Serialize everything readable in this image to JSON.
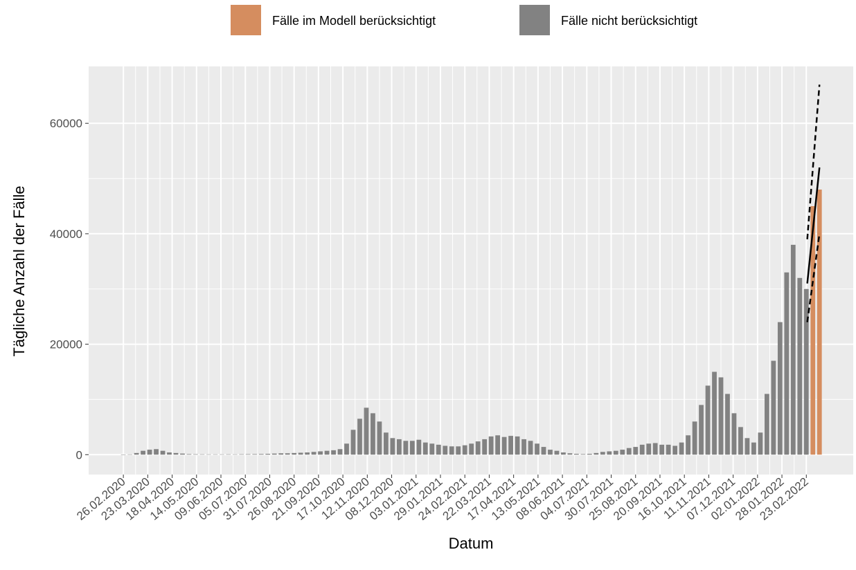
{
  "chart_data": {
    "type": "bar",
    "y_label": "Tägliche Anzahl der Fälle",
    "x_label": "Datum",
    "x": [
      "26.02.2020",
      "04.03.2020",
      "11.03.2020",
      "18.03.2020",
      "25.03.2020",
      "01.04.2020",
      "08.04.2020",
      "15.04.2020",
      "22.04.2020",
      "29.04.2020",
      "06.05.2020",
      "13.05.2020",
      "20.05.2020",
      "27.05.2020",
      "03.06.2020",
      "10.06.2020",
      "17.06.2020",
      "24.06.2020",
      "01.07.2020",
      "08.07.2020",
      "15.07.2020",
      "22.07.2020",
      "29.07.2020",
      "05.08.2020",
      "12.08.2020",
      "19.08.2020",
      "26.08.2020",
      "02.09.2020",
      "09.09.2020",
      "16.09.2020",
      "23.09.2020",
      "30.09.2020",
      "07.10.2020",
      "14.10.2020",
      "21.10.2020",
      "28.10.2020",
      "04.11.2020",
      "11.11.2020",
      "18.11.2020",
      "25.11.2020",
      "02.12.2020",
      "09.12.2020",
      "16.12.2020",
      "23.12.2020",
      "30.12.2020",
      "06.01.2021",
      "13.01.2021",
      "20.01.2021",
      "27.01.2021",
      "03.02.2021",
      "10.02.2021",
      "17.02.2021",
      "24.02.2021",
      "03.03.2021",
      "10.03.2021",
      "17.03.2021",
      "24.03.2021",
      "31.03.2021",
      "07.04.2021",
      "14.04.2021",
      "21.04.2021",
      "28.04.2021",
      "05.05.2021",
      "12.05.2021",
      "19.05.2021",
      "26.05.2021",
      "02.06.2021",
      "09.06.2021",
      "16.06.2021",
      "23.06.2021",
      "30.06.2021",
      "07.07.2021",
      "14.07.2021",
      "21.07.2021",
      "28.07.2021",
      "04.08.2021",
      "11.08.2021",
      "18.08.2021",
      "25.08.2021",
      "01.09.2021",
      "08.09.2021",
      "15.09.2021",
      "22.09.2021",
      "29.09.2021",
      "06.10.2021",
      "13.10.2021",
      "20.10.2021",
      "27.10.2021",
      "03.11.2021",
      "10.11.2021",
      "17.11.2021",
      "24.11.2021",
      "01.12.2021",
      "08.12.2021",
      "15.12.2021",
      "22.12.2021",
      "29.12.2021",
      "05.01.2022",
      "12.01.2022",
      "19.01.2022",
      "26.01.2022",
      "02.02.2022",
      "09.02.2022",
      "16.02.2022",
      "23.02.2022",
      "02.03.2022",
      "09.03.2022"
    ],
    "series": [
      {
        "name": "Fälle im Modell berücksichtigt",
        "color": "#d58d5f",
        "values": [
          null,
          null,
          null,
          null,
          null,
          null,
          null,
          null,
          null,
          null,
          null,
          null,
          null,
          null,
          null,
          null,
          null,
          null,
          null,
          null,
          null,
          null,
          null,
          null,
          null,
          null,
          null,
          null,
          null,
          null,
          null,
          null,
          null,
          null,
          null,
          null,
          null,
          null,
          null,
          null,
          null,
          null,
          null,
          null,
          null,
          null,
          null,
          null,
          null,
          null,
          null,
          null,
          null,
          null,
          null,
          null,
          null,
          null,
          null,
          null,
          null,
          null,
          null,
          null,
          null,
          null,
          null,
          null,
          null,
          null,
          null,
          null,
          null,
          null,
          null,
          null,
          null,
          null,
          null,
          null,
          null,
          null,
          null,
          null,
          null,
          null,
          null,
          null,
          null,
          null,
          null,
          null,
          null,
          null,
          null,
          null,
          null,
          null,
          null,
          null,
          null,
          null,
          null,
          null,
          null,
          45000,
          48000
        ]
      },
      {
        "name": "Fälle nicht berücksichtigt",
        "color": "#828282",
        "values": [
          0,
          50,
          300,
          700,
          900,
          1000,
          700,
          400,
          300,
          200,
          100,
          80,
          70,
          60,
          60,
          60,
          70,
          60,
          80,
          90,
          100,
          120,
          150,
          200,
          250,
          250,
          300,
          350,
          400,
          500,
          600,
          700,
          800,
          1000,
          2000,
          4500,
          6500,
          8500,
          7500,
          6000,
          4000,
          3000,
          2800,
          2500,
          2500,
          2700,
          2200,
          2000,
          1800,
          1600,
          1500,
          1500,
          1700,
          2000,
          2400,
          2800,
          3300,
          3500,
          3200,
          3400,
          3300,
          2800,
          2500,
          2000,
          1400,
          900,
          700,
          400,
          250,
          150,
          100,
          150,
          300,
          500,
          600,
          700,
          900,
          1200,
          1400,
          1800,
          2000,
          2100,
          1800,
          1800,
          1600,
          2200,
          3500,
          6000,
          9000,
          12500,
          15000,
          14000,
          11000,
          7500,
          5000,
          3000,
          2200,
          4000,
          11000,
          17000,
          24000,
          33000,
          38000,
          32000,
          30000,
          null,
          null
        ]
      }
    ],
    "fit": {
      "x": [
        "24.02.2022",
        "09.03.2022"
      ],
      "values": [
        31000,
        52000
      ],
      "upper": [
        39000,
        67000
      ],
      "lower": [
        24000,
        40000
      ]
    },
    "xlim": [
      "20.01.2020",
      "14.04.2022"
    ],
    "xticks": [
      "26.02.2020",
      "23.03.2020",
      "18.04.2020",
      "14.05.2020",
      "09.06.2020",
      "05.07.2020",
      "31.07.2020",
      "26.08.2020",
      "21.09.2020",
      "17.10.2020",
      "12.11.2020",
      "08.12.2020",
      "03.01.2021",
      "29.01.2021",
      "24.02.2021",
      "22.03.2021",
      "17.04.2021",
      "13.05.2021",
      "08.06.2021",
      "04.07.2021",
      "30.07.2021",
      "25.08.2021",
      "20.09.2021",
      "16.10.2021",
      "11.11.2021",
      "07.12.2021",
      "02.01.2022",
      "28.01.2022",
      "23.02.2022"
    ],
    "ylim": [
      -3600,
      70300
    ],
    "yticks": [
      0,
      20000,
      40000,
      60000
    ],
    "grid": true,
    "legend": "top"
  }
}
